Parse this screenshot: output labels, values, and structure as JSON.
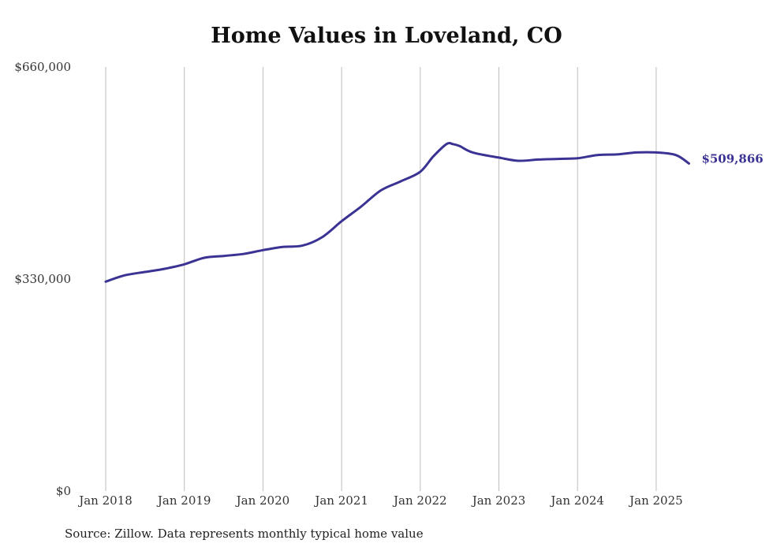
{
  "chart_data": {
    "type": "line",
    "title": "Home Values in Loveland, CO",
    "xlabel": "",
    "ylabel": "",
    "x_ticks": [
      "Jan 2018",
      "Jan 2019",
      "Jan 2020",
      "Jan 2021",
      "Jan 2022",
      "Jan 2023",
      "Jan 2024",
      "Jan 2025"
    ],
    "y_ticks": [
      "$0",
      "$330,000",
      "$660,000"
    ],
    "ylim": [
      0,
      660000
    ],
    "xlim": [
      "2018-01",
      "2025-06"
    ],
    "grid": "vertical",
    "line_color": "#3b3394",
    "end_label": "$509,866",
    "series": [
      {
        "x": [
          "2018-01",
          "2018-04",
          "2018-07",
          "2018-10",
          "2019-01",
          "2019-04",
          "2019-07",
          "2019-10",
          "2020-01",
          "2020-04",
          "2020-07",
          "2020-10",
          "2021-01",
          "2021-04",
          "2021-07",
          "2021-10",
          "2022-01",
          "2022-03",
          "2022-05",
          "2022-06",
          "2022-07",
          "2022-09",
          "2023-01",
          "2023-04",
          "2023-07",
          "2023-10",
          "2024-01",
          "2024-04",
          "2024-07",
          "2024-10",
          "2025-01",
          "2025-04",
          "2025-06"
        ],
        "values": [
          326000,
          336000,
          341000,
          346000,
          353000,
          363000,
          366000,
          369000,
          375000,
          380000,
          382000,
          395000,
          420000,
          443000,
          468000,
          482000,
          497000,
          521000,
          540000,
          540000,
          537000,
          527000,
          519000,
          514000,
          516000,
          517000,
          518000,
          523000,
          524000,
          527000,
          527000,
          523000,
          509866
        ]
      }
    ]
  },
  "footer": {
    "source": "Source: Zillow. Data represents monthly typical home value"
  }
}
